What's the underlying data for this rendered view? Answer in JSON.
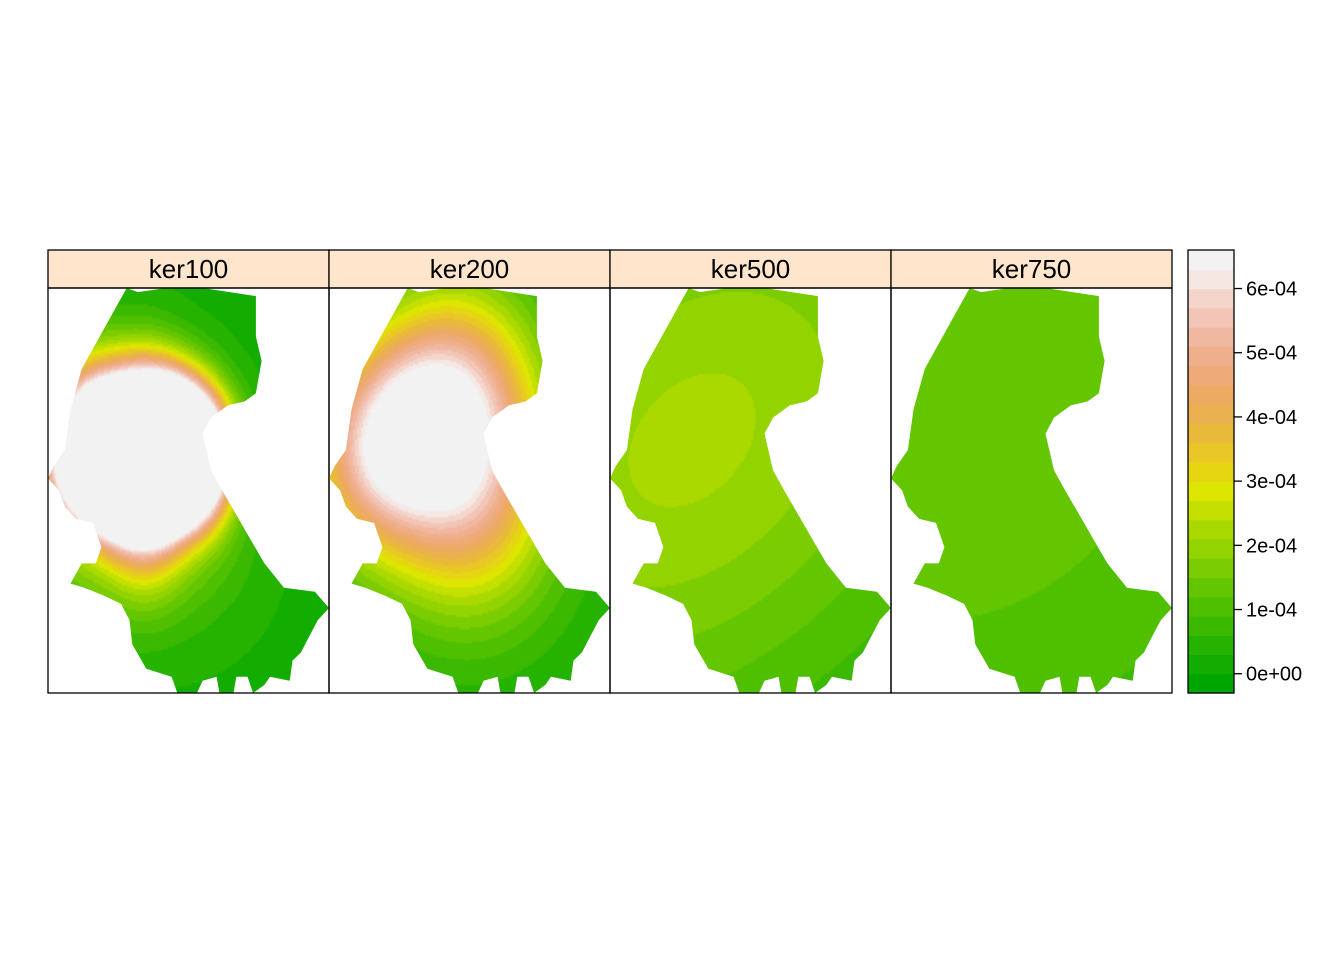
{
  "chart_data": {
    "type": "heatmap",
    "panels": [
      {
        "label": "ker100",
        "hotspots": [
          {
            "x": 0.3,
            "y": 0.26,
            "amp": 0.00064,
            "sx": 0.028,
            "sy": 0.045,
            "rot": -55
          },
          {
            "x": 0.3,
            "y": 0.18,
            "amp": 0.00048,
            "sx": 0.032,
            "sy": 0.026
          },
          {
            "x": 0.5,
            "y": 0.26,
            "amp": 0.0006,
            "sx": 0.026,
            "sy": 0.02
          },
          {
            "x": 0.17,
            "y": 0.25,
            "amp": 0.00055,
            "sx": 0.026,
            "sy": 0.022
          },
          {
            "x": 0.45,
            "y": 0.36,
            "amp": 0.00054,
            "sx": 0.026,
            "sy": 0.024
          },
          {
            "x": 0.18,
            "y": 0.14,
            "amp": 0.0005,
            "sx": 0.028,
            "sy": 0.02
          },
          {
            "x": 0.19,
            "y": 0.04,
            "amp": 0.00036,
            "sx": 0.022,
            "sy": 0.018
          },
          {
            "x": 0.35,
            "y": 0.11,
            "amp": 0.00048,
            "sx": 0.022,
            "sy": 0.04
          },
          {
            "x": 0.45,
            "y": 0.1,
            "amp": 0.0004,
            "sx": 0.026,
            "sy": 0.02
          },
          {
            "x": 0.53,
            "y": 0.05,
            "amp": 0.0004,
            "sx": 0.02,
            "sy": 0.02
          },
          {
            "x": 0.4,
            "y": 0.01,
            "amp": 0.00038,
            "sx": 0.022,
            "sy": 0.018
          },
          {
            "x": 0.26,
            "y": -0.04,
            "amp": 0.0003,
            "sx": 0.025,
            "sy": 0.02
          },
          {
            "x": 0.32,
            "y": -0.11,
            "amp": 6e-05,
            "sx": 0.045,
            "sy": 0.04
          },
          {
            "x": 0.1,
            "y": -0.06,
            "amp": 6e-05,
            "sx": 0.045,
            "sy": 0.04
          },
          {
            "x": 0.2,
            "y": -0.1,
            "amp": 5e-05,
            "sx": 0.045,
            "sy": 0.04
          },
          {
            "x": 0.08,
            "y": -0.22,
            "amp": 5e-05,
            "sx": 0.045,
            "sy": 0.04
          },
          {
            "x": 0.35,
            "y": -0.26,
            "amp": 4e-05,
            "sx": 0.045,
            "sy": 0.04
          },
          {
            "x": 0.53,
            "y": -0.32,
            "amp": 4e-05,
            "sx": 0.045,
            "sy": 0.04
          }
        ]
      },
      {
        "label": "ker200",
        "hotspots": [
          {
            "x": 0.2,
            "y": 0.25,
            "amp": 0.00036,
            "sx": 0.05,
            "sy": 0.04,
            "rot": -30
          },
          {
            "x": 0.48,
            "y": 0.35,
            "amp": 0.00028,
            "sx": 0.05,
            "sy": 0.06
          },
          {
            "x": 0.3,
            "y": 0.3,
            "amp": 0.00014,
            "sx": 0.06,
            "sy": 0.05
          },
          {
            "x": 0.48,
            "y": 0.52,
            "amp": 0.00012,
            "sx": 0.05,
            "sy": 0.04
          },
          {
            "x": 0.3,
            "y": 0.14,
            "amp": 0.00012,
            "sx": 0.05,
            "sy": 0.04
          },
          {
            "x": 0.55,
            "y": -0.08,
            "amp": 0.00014,
            "sx": 0.05,
            "sy": 0.045
          },
          {
            "x": 0.55,
            "y": -0.35,
            "amp": 6e-05,
            "sx": 0.06,
            "sy": 0.05
          },
          {
            "x": 0.3,
            "y": -0.3,
            "amp": 4e-05,
            "sx": 0.06,
            "sy": 0.05
          }
        ]
      },
      {
        "label": "ker500",
        "hotspots": [
          {
            "x": 0.25,
            "y": 0.2,
            "amp": 0.00016,
            "sx": 0.2,
            "sy": 0.12,
            "rot": -25
          },
          {
            "x": 0.45,
            "y": 0.4,
            "amp": 4e-05,
            "sx": 0.2,
            "sy": 0.15
          }
        ]
      },
      {
        "label": "ker750",
        "hotspots": [
          {
            "x": 0.35,
            "y": 0.3,
            "amp": 0.00012,
            "sx": 0.28,
            "sy": 0.18,
            "rot": -20
          }
        ]
      }
    ],
    "colorkey": {
      "ticks": [
        "0e+00",
        "1e-04",
        "2e-04",
        "3e-04",
        "4e-04",
        "5e-04",
        "6e-04"
      ],
      "tick_values": [
        0,
        0.0001,
        0.0002,
        0.0003,
        0.0004,
        0.0005,
        0.0006
      ],
      "range": [
        -3e-05,
        0.00066
      ],
      "colors": [
        "#00A600",
        "#13AC00",
        "#26B300",
        "#3AB900",
        "#4FC000",
        "#64C600",
        "#7BCC00",
        "#92D300",
        "#AAD900",
        "#C3E000",
        "#DDE600",
        "#E6D612",
        "#E8C727",
        "#E9BA3A",
        "#EBB04F",
        "#ECAA63",
        "#EEAA78",
        "#EFAF8D",
        "#F1B8A1",
        "#F2C5B6",
        "#F4D5CC",
        "#F5E8E3",
        "#F2F2F2"
      ]
    },
    "background_value": 2e-05
  }
}
